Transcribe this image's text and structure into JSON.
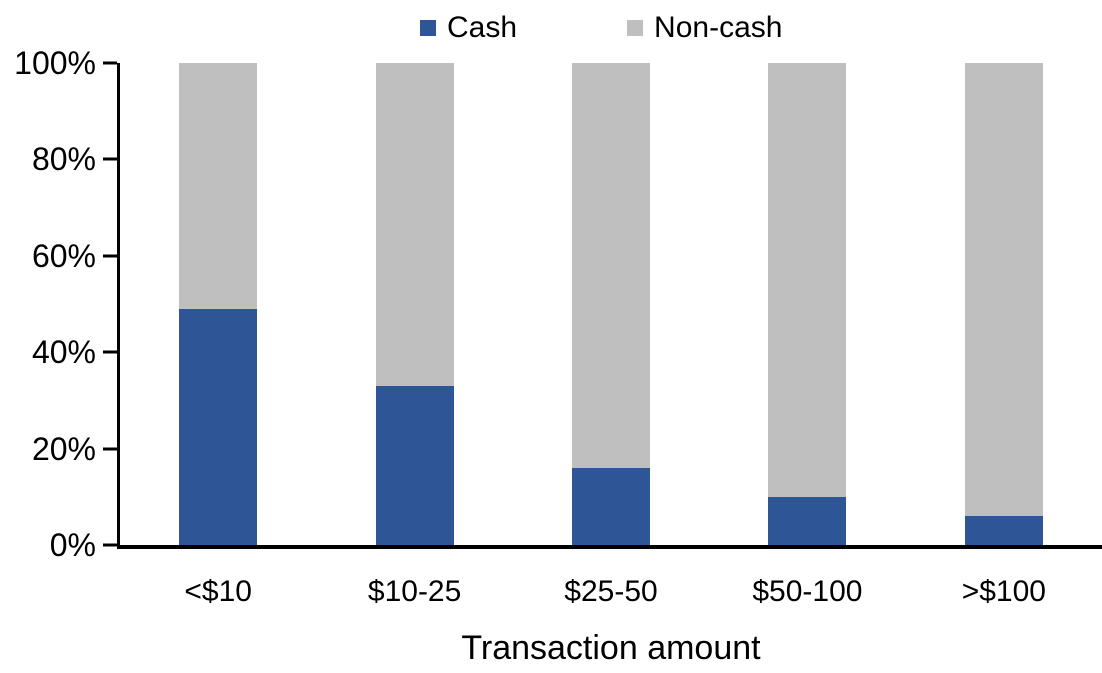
{
  "chart_data": {
    "type": "bar",
    "variant": "stacked-100-percent",
    "title": "",
    "xlabel": "Transaction amount",
    "ylabel": "",
    "categories": [
      "<$10",
      "$10-25",
      "$25-50",
      "$50-100",
      ">$100"
    ],
    "series": [
      {
        "name": "Cash",
        "color": "#2E5596",
        "values": [
          49,
          33,
          16,
          10,
          6
        ]
      },
      {
        "name": "Non-cash",
        "color": "#BFBFBF",
        "values": [
          51,
          67,
          84,
          90,
          94
        ]
      }
    ],
    "ylim": [
      0,
      100
    ],
    "y_ticks": [
      "0%",
      "20%",
      "40%",
      "60%",
      "80%",
      "100%"
    ],
    "legend_position": "top",
    "grid": false,
    "axis_color": "#000000",
    "background_color": "#FFFFFF"
  }
}
